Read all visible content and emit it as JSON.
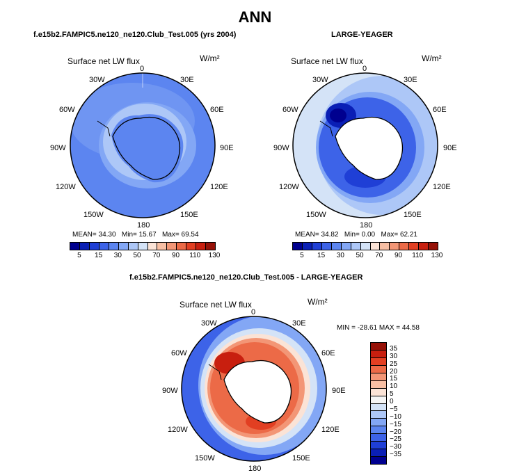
{
  "title": "ANN",
  "panels": [
    {
      "id": "model",
      "title": "f.e15b2.FAMPIC5.ne120_ne120.Club_Test.005 (yrs 2004)",
      "variable": "Surface net LW flux",
      "units": "W/m²",
      "stats": {
        "mean_label": "MEAN=",
        "mean": "34.30",
        "min_label": "Min=",
        "min": "15.67",
        "max_label": "Max=",
        "max": "69.54"
      }
    },
    {
      "id": "obs",
      "title": "LARGE-YEAGER",
      "variable": "Surface net LW flux",
      "units": "W/m²",
      "stats": {
        "mean_label": "MEAN=",
        "mean": "34.82",
        "min_label": "Min=",
        "min": "0.00",
        "max_label": "Max=",
        "max": "62.21"
      }
    },
    {
      "id": "diff",
      "title": "f.e15b2.FAMPIC5.ne120_ne120.Club_Test.005 - LARGE-YEAGER",
      "variable": "Surface net LW flux",
      "units": "W/m²",
      "stats": {
        "minmax": "MIN = -28.61 MAX =  44.58"
      }
    }
  ],
  "lon_labels": [
    "0",
    "30E",
    "60E",
    "90E",
    "120E",
    "150E",
    "180",
    "150W",
    "120W",
    "90W",
    "60W",
    "30W"
  ],
  "colorbar_abs": {
    "colors": [
      "#00008f",
      "#0a1fb5",
      "#1f3fd6",
      "#3d63e8",
      "#5c85f0",
      "#83a7f5",
      "#adc7f7",
      "#d4e3f7",
      "#fbe3d6",
      "#f8bfa4",
      "#f39676",
      "#ec6a47",
      "#e23f22",
      "#c81f0f",
      "#961107"
    ],
    "ticks": [
      "5",
      "15",
      "30",
      "50",
      "70",
      "90",
      "110",
      "130"
    ]
  },
  "colorbar_diff": {
    "colors": [
      "#00008f",
      "#0a1fb5",
      "#1f3fd6",
      "#3d63e8",
      "#5c85f0",
      "#83a7f5",
      "#adc7f7",
      "#d4e3f7",
      "#f5f5f5",
      "#fbe3d6",
      "#f8bfa4",
      "#f39676",
      "#ec6a47",
      "#e23f22",
      "#c81f0f",
      "#961107"
    ],
    "ticks": [
      "35",
      "30",
      "25",
      "20",
      "15",
      "10",
      "5",
      "0",
      "−5",
      "−10",
      "−15",
      "−20",
      "−25",
      "−30",
      "−35"
    ]
  }
}
